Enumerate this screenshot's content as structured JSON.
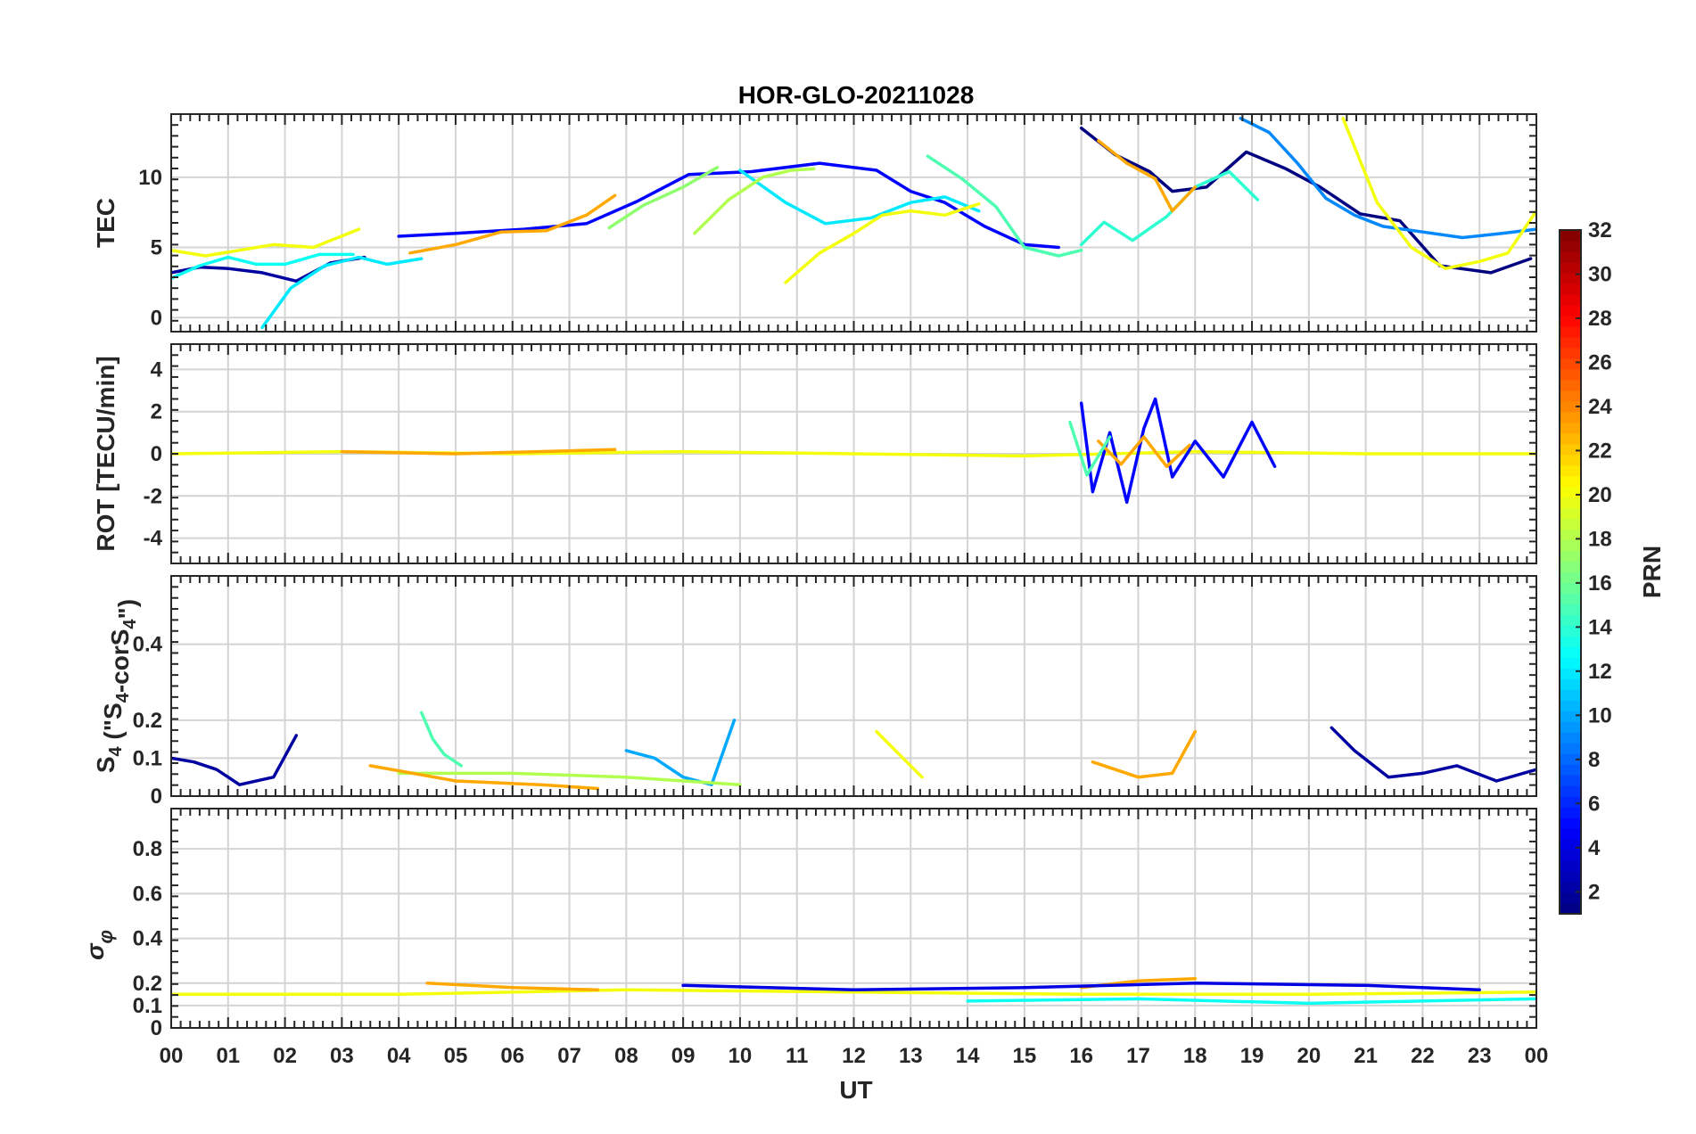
{
  "chart_data": {
    "type": "line",
    "title": "HOR-GLO-20211028",
    "xlabel": "UT",
    "x_tick_labels": [
      "00",
      "01",
      "02",
      "03",
      "04",
      "05",
      "06",
      "07",
      "08",
      "09",
      "10",
      "11",
      "12",
      "13",
      "14",
      "15",
      "16",
      "17",
      "18",
      "19",
      "20",
      "21",
      "22",
      "23",
      "00"
    ],
    "xlim": [
      0,
      24
    ],
    "grid": true,
    "colorbar": {
      "label": "PRN",
      "range": [
        1,
        32
      ],
      "ticks": [
        "2",
        "4",
        "6",
        "8",
        "10",
        "12",
        "14",
        "16",
        "18",
        "20",
        "22",
        "24",
        "26",
        "28",
        "30",
        "32"
      ],
      "colormap": "jet"
    },
    "panels": [
      {
        "name": "tec",
        "ylabel": "TEC",
        "ylim": [
          -1,
          14.5
        ],
        "y_ticks": [
          0,
          5,
          10
        ],
        "y_tick_labels": [
          "0",
          "5",
          "10"
        ],
        "series": [
          {
            "prn": 2,
            "x": [
              0.0,
              0.5,
              1.0,
              1.6,
              2.2,
              2.8,
              3.4
            ],
            "y": [
              3.2,
              3.6,
              3.5,
              3.2,
              2.6,
              3.9,
              4.3
            ]
          },
          {
            "prn": 5,
            "x": [
              4.0,
              5.0,
              6.2,
              7.3,
              8.2,
              9.1,
              10.2,
              11.4,
              12.4,
              13.0,
              13.6,
              14.3,
              15.0,
              15.6
            ],
            "y": [
              5.8,
              6.0,
              6.3,
              6.7,
              8.3,
              10.2,
              10.4,
              11.0,
              10.5,
              9.0,
              8.2,
              6.5,
              5.2,
              5.0
            ]
          },
          {
            "prn": 1,
            "x": [
              16.0,
              16.6,
              17.2,
              17.6,
              18.2,
              18.9,
              19.6,
              20.2,
              20.9,
              21.6,
              22.3,
              23.2,
              23.9
            ],
            "y": [
              13.5,
              11.6,
              10.4,
              9.0,
              9.3,
              11.8,
              10.6,
              9.3,
              7.4,
              6.9,
              3.7,
              3.2,
              4.2
            ]
          },
          {
            "prn": 9,
            "x": [
              18.8,
              19.3,
              19.8,
              20.3,
              20.8,
              21.3,
              22.0,
              22.7,
              23.4,
              24.0
            ],
            "y": [
              14.2,
              13.2,
              11.0,
              8.5,
              7.3,
              6.5,
              6.1,
              5.7,
              6.0,
              6.3
            ]
          },
          {
            "prn": 12,
            "x": [
              1.6,
              2.1,
              2.7,
              3.3,
              3.8,
              4.4
            ],
            "y": [
              -0.7,
              2.1,
              3.7,
              4.3,
              3.8,
              4.2
            ]
          },
          {
            "prn": 12,
            "x": [
              10.0,
              10.8,
              11.5,
              12.3,
              13.0,
              13.6,
              14.2
            ],
            "y": [
              10.5,
              8.2,
              6.7,
              7.1,
              8.2,
              8.6,
              7.6
            ]
          },
          {
            "prn": 14,
            "x": [
              16.0,
              16.4,
              16.9,
              17.5,
              18.0,
              18.6,
              19.1
            ],
            "y": [
              5.2,
              6.8,
              5.5,
              7.2,
              9.3,
              10.4,
              8.4
            ]
          },
          {
            "prn": 15,
            "x": [
              13.3,
              13.9,
              14.5,
              15.0,
              15.6,
              16.0
            ],
            "y": [
              11.5,
              9.9,
              7.9,
              5.0,
              4.4,
              4.8
            ]
          },
          {
            "prn": 17,
            "x": [
              7.7,
              8.3,
              9.0,
              9.6
            ],
            "y": [
              6.4,
              8.0,
              9.3,
              10.7
            ]
          },
          {
            "prn": 18,
            "x": [
              9.2,
              9.8,
              10.4,
              10.9,
              11.3
            ],
            "y": [
              6.0,
              8.4,
              10.0,
              10.5,
              10.6
            ]
          },
          {
            "prn": 20,
            "x": [
              0.0,
              0.6,
              1.2,
              1.8,
              2.5,
              3.3
            ],
            "y": [
              4.8,
              4.4,
              4.8,
              5.2,
              5.0,
              6.3
            ]
          },
          {
            "prn": 20,
            "x": [
              10.8,
              11.4,
              12.0,
              12.5,
              13.0,
              13.6,
              14.2
            ],
            "y": [
              2.5,
              4.6,
              6.0,
              7.3,
              7.6,
              7.3,
              8.1
            ]
          },
          {
            "prn": 20,
            "x": [
              20.6,
              21.2,
              21.8,
              22.4,
              23.0,
              23.5,
              24.0
            ],
            "y": [
              14.2,
              8.2,
              5.0,
              3.5,
              4.0,
              4.6,
              7.6
            ]
          },
          {
            "prn": 23,
            "x": [
              4.2,
              5.0,
              5.8,
              6.6,
              7.3,
              7.8
            ],
            "y": [
              4.6,
              5.2,
              6.1,
              6.2,
              7.3,
              8.7
            ]
          },
          {
            "prn": 23,
            "x": [
              16.3,
              16.8,
              17.3,
              17.6,
              18.0
            ],
            "y": [
              12.6,
              11.0,
              9.9,
              7.6,
              9.3
            ]
          },
          {
            "prn": 13,
            "x": [
              0.0,
              0.5,
              1.0,
              1.5,
              2.0,
              2.6,
              3.2
            ],
            "y": [
              2.8,
              3.7,
              4.3,
              3.8,
              3.8,
              4.5,
              4.5
            ]
          }
        ]
      },
      {
        "name": "rot",
        "ylabel": "ROT [TECU/min]",
        "ylim": [
          -5.2,
          5.2
        ],
        "y_ticks": [
          -4,
          -2,
          0,
          2,
          4
        ],
        "y_tick_labels": [
          "-4",
          "-2",
          "0",
          "2",
          "4"
        ],
        "series": [
          {
            "prn": 20,
            "x": [
              0.0,
              3.0,
              6.0,
              9.0,
              12.0,
              15.0,
              18.0,
              21.0,
              24.0
            ],
            "y": [
              0.0,
              0.1,
              0.0,
              0.1,
              0.0,
              -0.1,
              0.1,
              0.0,
              0.0
            ]
          },
          {
            "prn": 23,
            "x": [
              3.0,
              5.0,
              7.8
            ],
            "y": [
              0.1,
              0.0,
              0.2
            ]
          },
          {
            "prn": 5,
            "x": [
              16.0,
              16.2,
              16.5,
              16.8,
              17.1,
              17.3,
              17.6,
              18.0,
              18.5,
              19.0,
              19.4
            ],
            "y": [
              2.4,
              -1.8,
              1.0,
              -2.3,
              1.2,
              2.6,
              -1.1,
              0.6,
              -1.1,
              1.5,
              -0.6
            ]
          },
          {
            "prn": 23,
            "x": [
              16.3,
              16.7,
              17.1,
              17.5,
              17.9
            ],
            "y": [
              0.6,
              -0.5,
              0.8,
              -0.6,
              0.4
            ]
          },
          {
            "prn": 15,
            "x": [
              15.8,
              16.1,
              16.5
            ],
            "y": [
              1.5,
              -1.0,
              0.8
            ]
          }
        ]
      },
      {
        "name": "s4",
        "ylabel": "S4 (\"S4-corS4\")",
        "ylim": [
          0,
          0.58
        ],
        "y_ticks": [
          0,
          0.1,
          0.2,
          0.4
        ],
        "y_tick_labels": [
          "0",
          "0.1",
          "0.2",
          "0.4"
        ],
        "series": [
          {
            "prn": 2,
            "x": [
              0.0,
              0.4,
              0.8,
              1.2,
              1.8,
              2.2
            ],
            "y": [
              0.1,
              0.09,
              0.07,
              0.03,
              0.05,
              0.16
            ]
          },
          {
            "prn": 15,
            "x": [
              4.4,
              4.6,
              4.8,
              5.1
            ],
            "y": [
              0.22,
              0.15,
              0.11,
              0.08
            ]
          },
          {
            "prn": 10,
            "x": [
              8.0,
              8.5,
              9.0,
              9.5,
              9.9
            ],
            "y": [
              0.12,
              0.1,
              0.05,
              0.03,
              0.2
            ]
          },
          {
            "prn": 20,
            "x": [
              12.4,
              12.8,
              13.2
            ],
            "y": [
              0.17,
              0.11,
              0.05
            ]
          },
          {
            "prn": 23,
            "x": [
              16.2,
              17.0,
              17.6,
              18.0
            ],
            "y": [
              0.09,
              0.05,
              0.06,
              0.17
            ]
          },
          {
            "prn": 2,
            "x": [
              20.4,
              20.8,
              21.4,
              22.0,
              22.6,
              23.3,
              24.0
            ],
            "y": [
              0.18,
              0.12,
              0.05,
              0.06,
              0.08,
              0.04,
              0.07
            ]
          },
          {
            "prn": 18,
            "x": [
              4.0,
              6.0,
              8.0,
              10.0
            ],
            "y": [
              0.06,
              0.06,
              0.05,
              0.03
            ]
          },
          {
            "prn": 23,
            "x": [
              3.5,
              5.0,
              6.5,
              7.5
            ],
            "y": [
              0.08,
              0.04,
              0.03,
              0.02
            ]
          }
        ]
      },
      {
        "name": "sigma_phi",
        "ylabel": "σφ",
        "ylim": [
          0,
          0.98
        ],
        "y_ticks": [
          0,
          0.1,
          0.2,
          0.4,
          0.6,
          0.8
        ],
        "y_tick_labels": [
          "0",
          "0.1",
          "0.2",
          "0.4",
          "0.6",
          "0.8"
        ],
        "series": [
          {
            "prn": 20,
            "x": [
              0.0,
              4.0,
              8.0,
              12.0,
              16.0,
              20.0,
              24.0
            ],
            "y": [
              0.15,
              0.15,
              0.17,
              0.16,
              0.15,
              0.15,
              0.16
            ]
          },
          {
            "prn": 23,
            "x": [
              4.5,
              6.0,
              7.5
            ],
            "y": [
              0.2,
              0.18,
              0.17
            ]
          },
          {
            "prn": 23,
            "x": [
              16.0,
              17.0,
              18.0
            ],
            "y": [
              0.18,
              0.21,
              0.22
            ]
          },
          {
            "prn": 4,
            "x": [
              9.0,
              12.0,
              15.0,
              18.0,
              21.0,
              23.0
            ],
            "y": [
              0.19,
              0.17,
              0.18,
              0.2,
              0.19,
              0.17
            ]
          },
          {
            "prn": 13,
            "x": [
              14.0,
              17.0,
              20.0,
              24.0
            ],
            "y": [
              0.12,
              0.13,
              0.11,
              0.13
            ]
          }
        ]
      }
    ]
  }
}
